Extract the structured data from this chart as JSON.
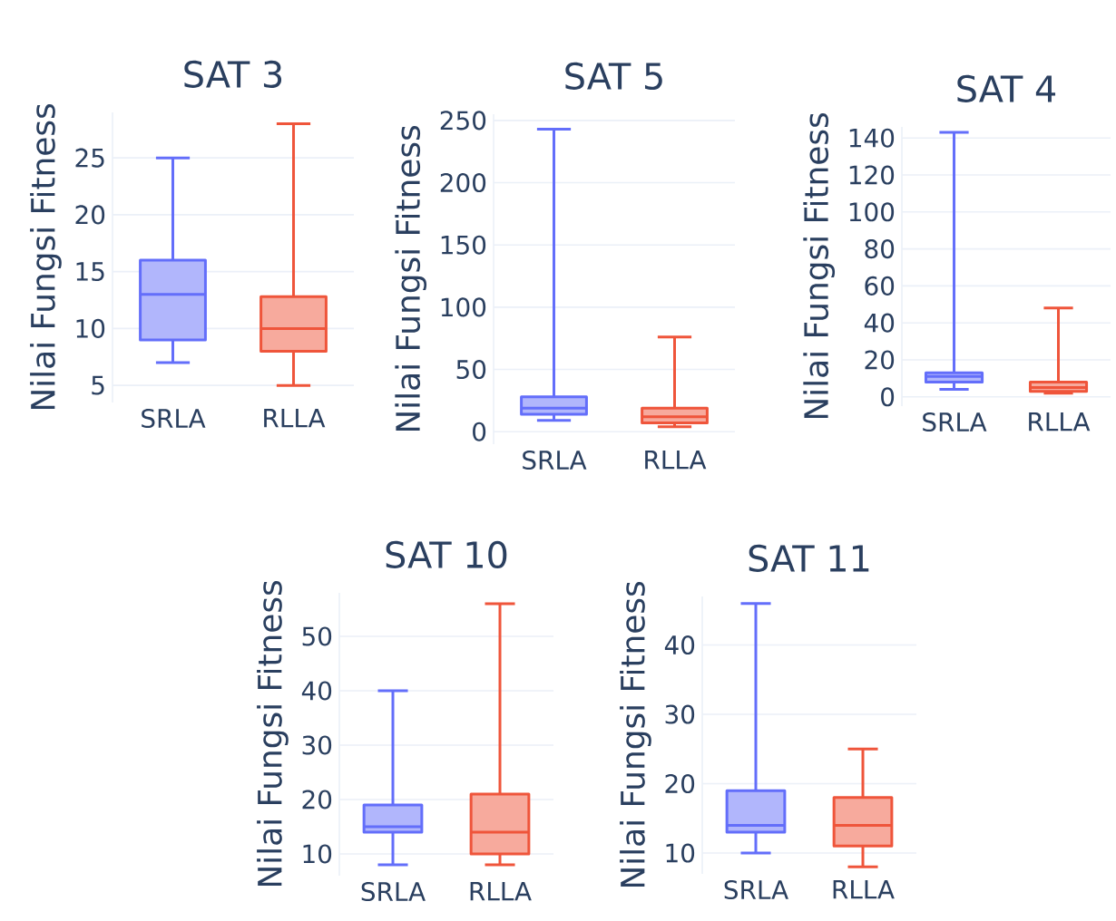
{
  "chart_data": [
    {
      "type": "box",
      "title": "SAT 3",
      "ylabel": "Nilai Fungsi Fitness",
      "categories": [
        "SRLA",
        "RLLA"
      ],
      "colors": [
        "#636efa",
        "#ef553b"
      ],
      "ylim": [
        3.5,
        29
      ],
      "yticks": [
        5,
        10,
        15,
        20,
        25
      ],
      "grid": "y",
      "boxes": [
        {
          "low": 7,
          "q1": 9,
          "median": 13,
          "q3": 16,
          "high": 25
        },
        {
          "low": 5,
          "q1": 8,
          "median": 10,
          "q3": 12.8,
          "high": 28
        }
      ]
    },
    {
      "type": "box",
      "title": "SAT 5",
      "ylabel": "Nilai Fungsi Fitness",
      "categories": [
        "SRLA",
        "RLLA"
      ],
      "colors": [
        "#636efa",
        "#ef553b"
      ],
      "ylim": [
        -10,
        255
      ],
      "yticks": [
        0,
        50,
        100,
        150,
        200,
        250
      ],
      "grid": "y",
      "boxes": [
        {
          "low": 9,
          "q1": 14,
          "median": 19,
          "q3": 28,
          "high": 243
        },
        {
          "low": 4,
          "q1": 7,
          "median": 12,
          "q3": 19,
          "high": 76
        }
      ]
    },
    {
      "type": "box",
      "title": "SAT 4",
      "ylabel": "Nilai Fungsi Fitness",
      "categories": [
        "SRLA",
        "RLLA"
      ],
      "colors": [
        "#636efa",
        "#ef553b"
      ],
      "ylim": [
        -5,
        146
      ],
      "yticks": [
        0,
        20,
        40,
        60,
        80,
        100,
        120,
        140
      ],
      "grid": "y",
      "boxes": [
        {
          "low": 4,
          "q1": 8,
          "median": 11,
          "q3": 13,
          "high": 143
        },
        {
          "low": 2,
          "q1": 3,
          "median": 5,
          "q3": 8,
          "high": 48
        }
      ]
    },
    {
      "type": "box",
      "title": "SAT 10",
      "ylabel": "Nilai Fungsi Fitness",
      "categories": [
        "SRLA",
        "RLLA"
      ],
      "colors": [
        "#636efa",
        "#ef553b"
      ],
      "ylim": [
        6,
        58
      ],
      "yticks": [
        10,
        20,
        30,
        40,
        50
      ],
      "grid": "y",
      "boxes": [
        {
          "low": 8,
          "q1": 14,
          "median": 15,
          "q3": 19,
          "high": 40
        },
        {
          "low": 8,
          "q1": 10,
          "median": 14,
          "q3": 21,
          "high": 56
        }
      ]
    },
    {
      "type": "box",
      "title": "SAT 11",
      "ylabel": "Nilai Fungsi Fitness",
      "categories": [
        "SRLA",
        "RLLA"
      ],
      "colors": [
        "#636efa",
        "#ef553b"
      ],
      "ylim": [
        7,
        47
      ],
      "yticks": [
        10,
        20,
        30,
        40
      ],
      "grid": "y",
      "boxes": [
        {
          "low": 10,
          "q1": 13,
          "median": 14,
          "q3": 19,
          "high": 46
        },
        {
          "low": 8,
          "q1": 11,
          "median": 14,
          "q3": 18,
          "high": 25
        }
      ]
    }
  ]
}
